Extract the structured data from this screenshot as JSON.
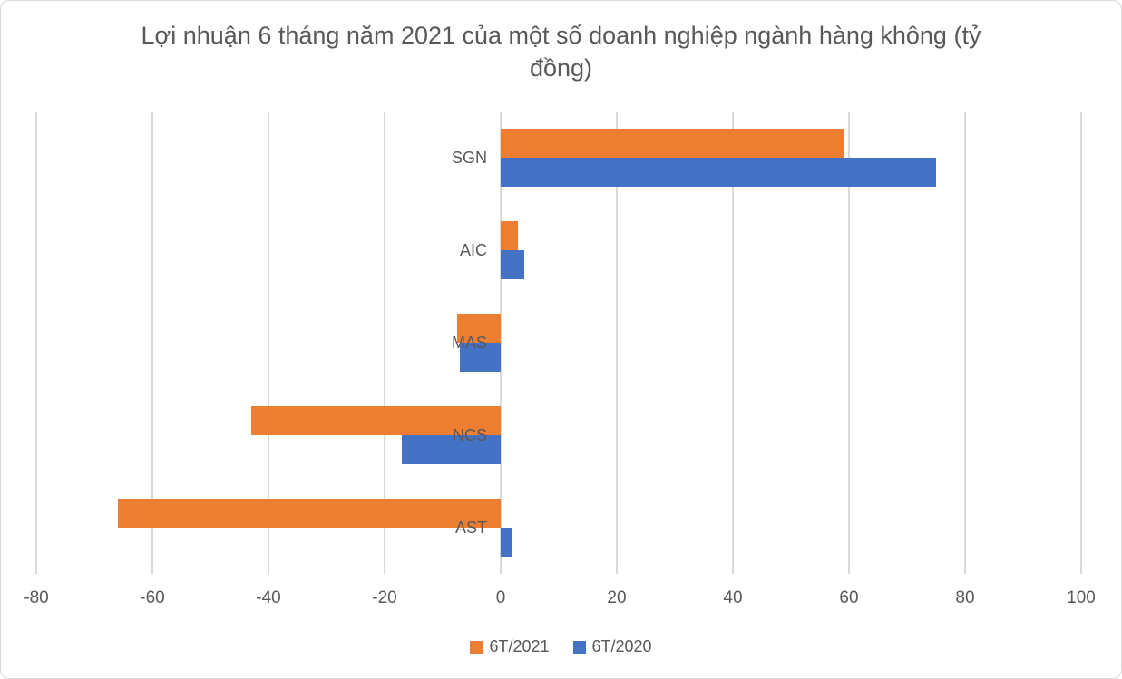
{
  "chart_data": {
    "type": "bar",
    "orientation": "horizontal",
    "title": "Lợi nhuận 6 tháng năm 2021 của một số doanh nghiệp ngành hàng không (tỷ đồng)",
    "categories": [
      "SGN",
      "AIC",
      "MAS",
      "NCS",
      "AST"
    ],
    "series": [
      {
        "name": "6T/2021",
        "color": "#ED7D31",
        "values": [
          59,
          3,
          -7.5,
          -43,
          -66
        ]
      },
      {
        "name": "6T/2020",
        "color": "#4472C4",
        "values": [
          75,
          4,
          -7,
          -17,
          2
        ]
      }
    ],
    "xlim": [
      -80,
      100
    ],
    "xticks": [
      -80,
      -60,
      -40,
      -20,
      0,
      20,
      40,
      60,
      80,
      100
    ],
    "grid": true,
    "legend_position": "bottom",
    "colors": {
      "gridline": "#d9d9d9",
      "axis_text": "#595959",
      "title_text": "#595959",
      "background": "#ffffff"
    }
  }
}
